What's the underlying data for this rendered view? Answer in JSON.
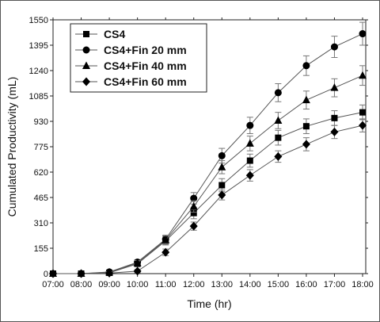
{
  "chart_data": {
    "type": "line",
    "title": "",
    "xlabel": "Time (hr)",
    "ylabel": "Cumulated Productivity (mL)",
    "categories": [
      "07:00",
      "08:00",
      "09:00",
      "10:00",
      "11:00",
      "12:00",
      "13:00",
      "14:00",
      "15:00",
      "16:00",
      "17:00",
      "18:00"
    ],
    "yticks": [
      "0",
      "155",
      "310",
      "465",
      "620",
      "775",
      "930",
      "1085",
      "1240",
      "1395",
      "1550"
    ],
    "ylim": [
      0,
      1550
    ],
    "grid": false,
    "legend_position": "top-left",
    "series": [
      {
        "name": "CS4",
        "marker": "square",
        "values": [
          0,
          0,
          5,
          60,
          200,
          370,
          540,
          690,
          830,
          900,
          950,
          985
        ],
        "errors": [
          0,
          0,
          5,
          15,
          25,
          35,
          40,
          40,
          45,
          45,
          45,
          45
        ]
      },
      {
        "name": "CS4+Fin 20 mm",
        "marker": "circle",
        "values": [
          0,
          0,
          10,
          70,
          210,
          460,
          720,
          905,
          1105,
          1270,
          1385,
          1465
        ],
        "errors": [
          0,
          0,
          5,
          15,
          25,
          35,
          45,
          50,
          55,
          60,
          65,
          70
        ]
      },
      {
        "name": "CS4+Fin 40 mm",
        "marker": "triangle",
        "values": [
          0,
          0,
          8,
          65,
          205,
          410,
          650,
          795,
          935,
          1060,
          1135,
          1210
        ],
        "errors": [
          0,
          0,
          5,
          15,
          25,
          35,
          40,
          45,
          50,
          55,
          55,
          60
        ]
      },
      {
        "name": "CS4+Fin 60 mm",
        "marker": "diamond",
        "values": [
          0,
          0,
          3,
          15,
          130,
          290,
          480,
          600,
          715,
          790,
          865,
          905
        ],
        "errors": [
          0,
          0,
          3,
          10,
          20,
          25,
          30,
          35,
          35,
          40,
          40,
          40
        ]
      }
    ]
  }
}
